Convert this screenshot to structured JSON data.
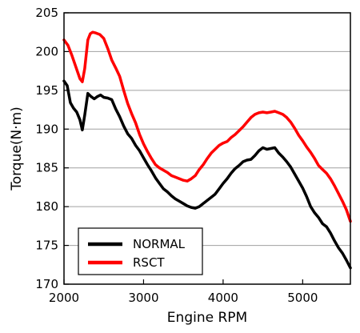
{
  "chart_data": {
    "type": "line",
    "title": "",
    "xlabel": "Engine RPM",
    "ylabel": "Torque(N·m)",
    "xlim": [
      2000,
      5600
    ],
    "ylim": [
      170,
      205
    ],
    "xticks": [
      2000,
      3000,
      4000,
      5000
    ],
    "yticks": [
      170,
      175,
      180,
      185,
      190,
      195,
      200,
      205
    ],
    "grid": "horizontal",
    "legend_position": "bottom-left",
    "series": [
      {
        "name": "NORMAL",
        "color": "#000000",
        "points": [
          [
            2000,
            196.2
          ],
          [
            2040,
            195.6
          ],
          [
            2080,
            193.4
          ],
          [
            2120,
            192.7
          ],
          [
            2160,
            192.2
          ],
          [
            2200,
            191.2
          ],
          [
            2230,
            189.9
          ],
          [
            2260,
            191.8
          ],
          [
            2300,
            194.6
          ],
          [
            2340,
            194.2
          ],
          [
            2380,
            193.9
          ],
          [
            2420,
            194.2
          ],
          [
            2460,
            194.4
          ],
          [
            2500,
            194.1
          ],
          [
            2550,
            194.0
          ],
          [
            2600,
            193.8
          ],
          [
            2650,
            192.6
          ],
          [
            2700,
            191.6
          ],
          [
            2750,
            190.4
          ],
          [
            2800,
            189.4
          ],
          [
            2850,
            188.8
          ],
          [
            2900,
            187.9
          ],
          [
            2950,
            187.2
          ],
          [
            3000,
            186.3
          ],
          [
            3050,
            185.4
          ],
          [
            3100,
            184.6
          ],
          [
            3150,
            183.7
          ],
          [
            3200,
            183.0
          ],
          [
            3250,
            182.3
          ],
          [
            3300,
            181.9
          ],
          [
            3350,
            181.4
          ],
          [
            3400,
            181.0
          ],
          [
            3450,
            180.7
          ],
          [
            3500,
            180.4
          ],
          [
            3550,
            180.1
          ],
          [
            3600,
            179.9
          ],
          [
            3650,
            179.8
          ],
          [
            3700,
            180.0
          ],
          [
            3750,
            180.4
          ],
          [
            3800,
            180.8
          ],
          [
            3850,
            181.2
          ],
          [
            3900,
            181.6
          ],
          [
            3950,
            182.3
          ],
          [
            4000,
            183.0
          ],
          [
            4050,
            183.6
          ],
          [
            4100,
            184.3
          ],
          [
            4150,
            184.9
          ],
          [
            4200,
            185.3
          ],
          [
            4250,
            185.8
          ],
          [
            4300,
            186.0
          ],
          [
            4350,
            186.1
          ],
          [
            4400,
            186.6
          ],
          [
            4450,
            187.2
          ],
          [
            4500,
            187.6
          ],
          [
            4550,
            187.4
          ],
          [
            4600,
            187.5
          ],
          [
            4650,
            187.6
          ],
          [
            4700,
            186.9
          ],
          [
            4750,
            186.4
          ],
          [
            4800,
            185.8
          ],
          [
            4850,
            185.1
          ],
          [
            4900,
            184.2
          ],
          [
            4950,
            183.3
          ],
          [
            5000,
            182.4
          ],
          [
            5050,
            181.3
          ],
          [
            5100,
            180.0
          ],
          [
            5150,
            179.2
          ],
          [
            5200,
            178.6
          ],
          [
            5250,
            177.8
          ],
          [
            5300,
            177.4
          ],
          [
            5350,
            176.6
          ],
          [
            5400,
            175.6
          ],
          [
            5450,
            174.7
          ],
          [
            5500,
            174.0
          ],
          [
            5550,
            173.1
          ],
          [
            5600,
            172.1
          ]
        ]
      },
      {
        "name": "RSCT",
        "color": "#ff0000",
        "points": [
          [
            2000,
            201.5
          ],
          [
            2050,
            200.8
          ],
          [
            2100,
            199.5
          ],
          [
            2150,
            198.0
          ],
          [
            2200,
            196.5
          ],
          [
            2230,
            196.1
          ],
          [
            2260,
            197.8
          ],
          [
            2300,
            201.5
          ],
          [
            2330,
            202.3
          ],
          [
            2360,
            202.5
          ],
          [
            2400,
            202.4
          ],
          [
            2450,
            202.2
          ],
          [
            2500,
            201.7
          ],
          [
            2550,
            200.4
          ],
          [
            2600,
            198.9
          ],
          [
            2650,
            197.9
          ],
          [
            2700,
            196.8
          ],
          [
            2750,
            195.0
          ],
          [
            2800,
            193.3
          ],
          [
            2850,
            192.0
          ],
          [
            2900,
            190.8
          ],
          [
            2950,
            189.3
          ],
          [
            3000,
            188.1
          ],
          [
            3050,
            187.1
          ],
          [
            3100,
            186.2
          ],
          [
            3150,
            185.4
          ],
          [
            3200,
            185.0
          ],
          [
            3250,
            184.7
          ],
          [
            3300,
            184.4
          ],
          [
            3350,
            184.0
          ],
          [
            3400,
            183.8
          ],
          [
            3450,
            183.6
          ],
          [
            3500,
            183.4
          ],
          [
            3550,
            183.3
          ],
          [
            3600,
            183.6
          ],
          [
            3650,
            184.0
          ],
          [
            3700,
            184.8
          ],
          [
            3750,
            185.4
          ],
          [
            3800,
            186.2
          ],
          [
            3850,
            186.9
          ],
          [
            3900,
            187.4
          ],
          [
            3950,
            187.9
          ],
          [
            4000,
            188.2
          ],
          [
            4050,
            188.4
          ],
          [
            4100,
            188.9
          ],
          [
            4150,
            189.3
          ],
          [
            4200,
            189.8
          ],
          [
            4250,
            190.3
          ],
          [
            4300,
            190.9
          ],
          [
            4350,
            191.5
          ],
          [
            4400,
            191.9
          ],
          [
            4450,
            192.1
          ],
          [
            4500,
            192.2
          ],
          [
            4550,
            192.1
          ],
          [
            4600,
            192.2
          ],
          [
            4650,
            192.3
          ],
          [
            4700,
            192.1
          ],
          [
            4750,
            191.9
          ],
          [
            4800,
            191.5
          ],
          [
            4850,
            190.9
          ],
          [
            4900,
            190.1
          ],
          [
            4950,
            189.2
          ],
          [
            5000,
            188.5
          ],
          [
            5050,
            187.7
          ],
          [
            5100,
            187.0
          ],
          [
            5150,
            186.2
          ],
          [
            5200,
            185.3
          ],
          [
            5250,
            184.8
          ],
          [
            5300,
            184.3
          ],
          [
            5350,
            183.6
          ],
          [
            5400,
            182.7
          ],
          [
            5450,
            181.7
          ],
          [
            5500,
            180.7
          ],
          [
            5550,
            179.6
          ],
          [
            5600,
            178.1
          ]
        ]
      }
    ]
  }
}
